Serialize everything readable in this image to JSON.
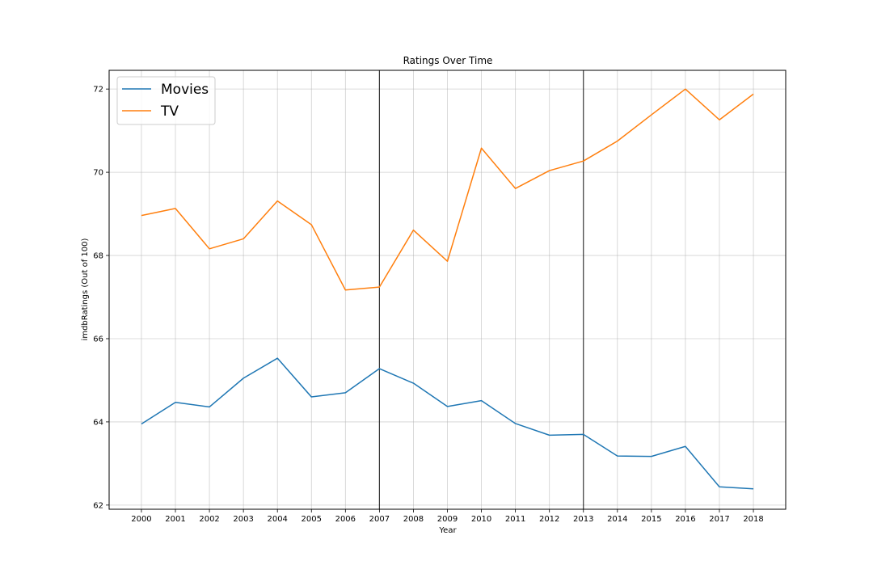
{
  "chart_data": {
    "type": "line",
    "title": "Ratings Over Time",
    "xlabel": "Year",
    "ylabel": "imdbRatings (Out of 100)",
    "x": [
      2000,
      2001,
      2002,
      2003,
      2004,
      2005,
      2006,
      2007,
      2008,
      2009,
      2010,
      2011,
      2012,
      2013,
      2014,
      2015,
      2016,
      2017,
      2018
    ],
    "x_tick_labels": [
      "2000",
      "2001",
      "2002",
      "2003",
      "2004",
      "2005",
      "2006",
      "2007",
      "2008",
      "2009",
      "2010",
      "2011",
      "2012",
      "2013",
      "2014",
      "2015",
      "2016",
      "2017",
      "2018"
    ],
    "y_ticks": [
      62,
      64,
      66,
      68,
      70,
      72
    ],
    "y_tick_labels": [
      "62",
      "64",
      "66",
      "68",
      "70",
      "72"
    ],
    "xlim": [
      1999.05,
      2018.95
    ],
    "ylim": [
      61.9,
      72.45
    ],
    "grid": true,
    "legend": "upper-left",
    "vertical_lines": [
      2007,
      2013
    ],
    "series": [
      {
        "name": "Movies",
        "color": "#1f77b4",
        "values": [
          63.95,
          64.47,
          64.36,
          65.05,
          65.53,
          64.6,
          64.7,
          65.28,
          64.93,
          64.37,
          64.51,
          63.96,
          63.68,
          63.7,
          63.18,
          63.17,
          63.41,
          62.44,
          62.39
        ]
      },
      {
        "name": "TV",
        "color": "#ff7f0e",
        "values": [
          68.96,
          69.13,
          68.16,
          68.4,
          69.31,
          68.74,
          67.17,
          67.24,
          68.61,
          67.86,
          70.58,
          69.61,
          70.04,
          70.27,
          70.75,
          71.38,
          72.0,
          71.26,
          71.88
        ]
      }
    ]
  }
}
